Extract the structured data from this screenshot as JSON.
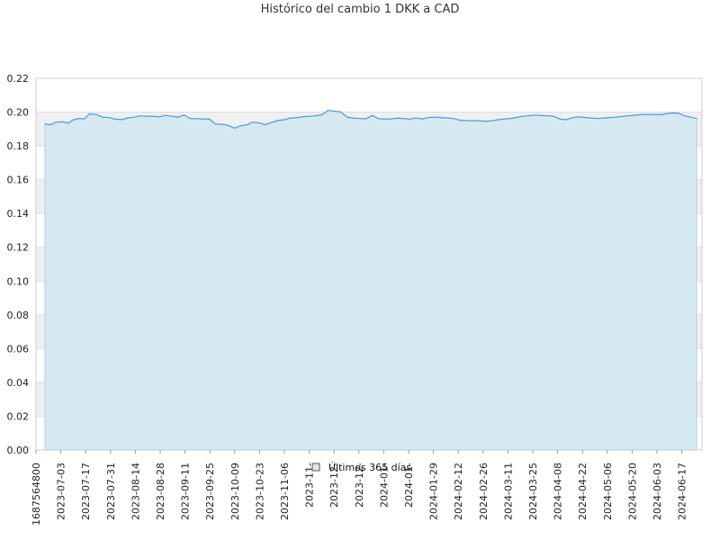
{
  "chart_data": {
    "type": "area",
    "title": "Histórico del cambio 1 DKK a CAD",
    "xlabel": "",
    "ylabel": "",
    "ylim": [
      0,
      0.22
    ],
    "y_ticks": [
      "0.00",
      "0.02",
      "0.04",
      "0.06",
      "0.08",
      "0.10",
      "0.12",
      "0.14",
      "0.16",
      "0.18",
      "0.20",
      "0.22"
    ],
    "x_ticks": [
      "1687564800",
      "2023-07-03",
      "2023-07-17",
      "2023-07-31",
      "2023-08-14",
      "2023-08-28",
      "2023-09-11",
      "2023-09-25",
      "2023-10-09",
      "2023-10-23",
      "2023-11-06",
      "2023-11-",
      "2023-12-",
      "2023-12-",
      "2024-01-",
      "2024-01-",
      "2024-01-29",
      "2024-02-12",
      "2024-02-26",
      "2024-03-11",
      "2024-03-25",
      "2024-04-08",
      "2024-04-22",
      "2024-05-06",
      "2024-05-20",
      "2024-06-03",
      "2024-06-17"
    ],
    "grid": true,
    "legend_position": "bottom-center",
    "colors": {
      "fill": "#d6e9f1",
      "line": "#4a9de0",
      "band": "#f0f0f0",
      "grid": "#dddddd"
    },
    "series": [
      {
        "name": "Últimos 365 días",
        "x": [
          "2023-06-25",
          "2023-06-28",
          "2023-07-01",
          "2023-07-05",
          "2023-07-08",
          "2023-07-11",
          "2023-07-14",
          "2023-07-17",
          "2023-07-20",
          "2023-07-24",
          "2023-07-27",
          "2023-07-31",
          "2023-08-03",
          "2023-08-07",
          "2023-08-10",
          "2023-08-14",
          "2023-08-17",
          "2023-08-21",
          "2023-08-24",
          "2023-08-28",
          "2023-08-31",
          "2023-09-04",
          "2023-09-07",
          "2023-09-11",
          "2023-09-14",
          "2023-09-18",
          "2023-09-21",
          "2023-09-25",
          "2023-09-28",
          "2023-10-02",
          "2023-10-05",
          "2023-10-09",
          "2023-10-12",
          "2023-10-16",
          "2023-10-19",
          "2023-10-23",
          "2023-10-26",
          "2023-10-30",
          "2023-11-02",
          "2023-11-06",
          "2023-11-09",
          "2023-11-13",
          "2023-11-16",
          "2023-11-20",
          "2023-11-23",
          "2023-11-27",
          "2023-11-30",
          "2023-12-04",
          "2023-12-07",
          "2023-12-11",
          "2023-12-14",
          "2023-12-18",
          "2023-12-21",
          "2023-12-25",
          "2023-12-28",
          "2024-01-01",
          "2024-01-04",
          "2024-01-08",
          "2024-01-11",
          "2024-01-15",
          "2024-01-18",
          "2024-01-22",
          "2024-01-25",
          "2024-01-29",
          "2024-02-01",
          "2024-02-05",
          "2024-02-08",
          "2024-02-12",
          "2024-02-15",
          "2024-02-19",
          "2024-02-22",
          "2024-02-26",
          "2024-02-29",
          "2024-03-04",
          "2024-03-07",
          "2024-03-11",
          "2024-03-14",
          "2024-03-18",
          "2024-03-21",
          "2024-03-25",
          "2024-03-28",
          "2024-04-01",
          "2024-04-04",
          "2024-04-08",
          "2024-04-11",
          "2024-04-15",
          "2024-04-18",
          "2024-04-22",
          "2024-04-25",
          "2024-04-29",
          "2024-05-02",
          "2024-05-06",
          "2024-05-09",
          "2024-05-13",
          "2024-05-16",
          "2024-05-20",
          "2024-05-23",
          "2024-05-27",
          "2024-05-30",
          "2024-06-03",
          "2024-06-06",
          "2024-06-10",
          "2024-06-13",
          "2024-06-17",
          "2024-06-20",
          "2024-06-23"
        ],
        "values": [
          0.193,
          0.1925,
          0.194,
          0.1942,
          0.1935,
          0.1955,
          0.1962,
          0.196,
          0.199,
          0.1985,
          0.197,
          0.1968,
          0.1958,
          0.1955,
          0.1965,
          0.197,
          0.1978,
          0.1975,
          0.1976,
          0.1972,
          0.198,
          0.1975,
          0.197,
          0.1982,
          0.1962,
          0.1961,
          0.196,
          0.1958,
          0.193,
          0.1928,
          0.1922,
          0.1905,
          0.1918,
          0.1925,
          0.194,
          0.1935,
          0.1925,
          0.194,
          0.195,
          0.1955,
          0.1965,
          0.1968,
          0.1972,
          0.1975,
          0.1978,
          0.1985,
          0.201,
          0.2005,
          0.2002,
          0.197,
          0.1965,
          0.1962,
          0.196,
          0.198,
          0.1962,
          0.1958,
          0.196,
          0.1965,
          0.1962,
          0.1958,
          0.1965,
          0.196,
          0.1968,
          0.197,
          0.1968,
          0.1965,
          0.1962,
          0.1952,
          0.195,
          0.1948,
          0.195,
          0.1945,
          0.1948,
          0.1955,
          0.1958,
          0.1962,
          0.1968,
          0.1975,
          0.1978,
          0.1982,
          0.198,
          0.1978,
          0.1975,
          0.1958,
          0.1955,
          0.1968,
          0.1972,
          0.1968,
          0.1965,
          0.1962,
          0.1965,
          0.1968,
          0.197,
          0.1975,
          0.1978,
          0.1982,
          0.1985,
          0.1986,
          0.1985,
          0.1985,
          0.199,
          0.1995,
          0.1992,
          0.1975,
          0.197,
          0.1962
        ]
      }
    ]
  }
}
